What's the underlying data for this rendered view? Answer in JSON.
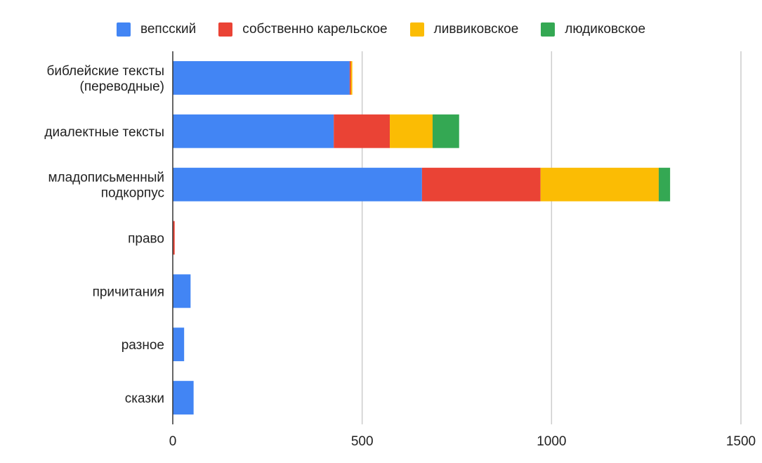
{
  "chart_data": {
    "type": "bar",
    "orientation": "horizontal",
    "stacked": true,
    "categories": [
      "библейские тексты (переводные)",
      "диалектные тексты",
      "младописьменный подкорпус",
      "право",
      "причитания",
      "разное",
      "сказки"
    ],
    "series": [
      {
        "name": "вепсский",
        "color": "#4285f4",
        "values": [
          467,
          425,
          658,
          0,
          47,
          30,
          55
        ]
      },
      {
        "name": "собственно карельское",
        "color": "#ea4335",
        "values": [
          3,
          148,
          313,
          5,
          0,
          0,
          0
        ]
      },
      {
        "name": "ливвиковское",
        "color": "#fbbc04",
        "values": [
          4,
          113,
          312,
          0,
          0,
          0,
          0
        ]
      },
      {
        "name": "людиковское",
        "color": "#34a853",
        "values": [
          0,
          70,
          30,
          0,
          0,
          0,
          0
        ]
      }
    ],
    "xlim": [
      0,
      1500
    ],
    "xticks": [
      0,
      500,
      1000,
      1500
    ],
    "title": "",
    "xlabel": "",
    "ylabel": "",
    "legend_position": "top",
    "grid": true
  }
}
